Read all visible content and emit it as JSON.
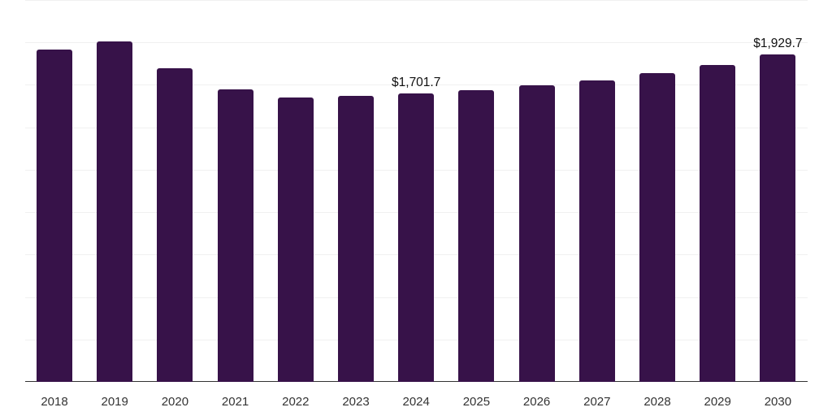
{
  "chart_data": {
    "type": "bar",
    "title": "",
    "xlabel": "",
    "ylabel": "",
    "categories": [
      "2018",
      "2019",
      "2020",
      "2021",
      "2022",
      "2023",
      "2024",
      "2025",
      "2026",
      "2027",
      "2028",
      "2029",
      "2030"
    ],
    "values": [
      1959,
      2007,
      1849,
      1724,
      1677,
      1686,
      1701.7,
      1720,
      1748,
      1777,
      1820,
      1868,
      1929.7
    ],
    "data_labels": [
      {
        "category": "2024",
        "text": "$1,701.7"
      },
      {
        "category": "2030",
        "text": "$1,929.7"
      }
    ],
    "ylim": [
      0,
      2250
    ],
    "y_grid_step": 250,
    "grid": true,
    "legend": null,
    "bar_color": "#371249"
  }
}
